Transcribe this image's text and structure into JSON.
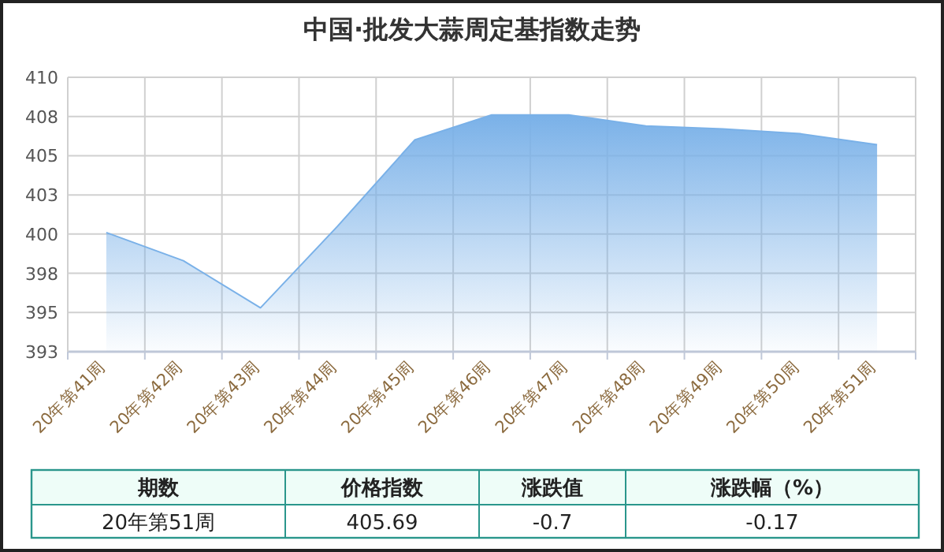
{
  "chart_data": {
    "type": "area",
    "title": "中国·批发大蒜周定基指数走势",
    "categories": [
      "20年第41周",
      "20年第42周",
      "20年第43周",
      "20年第44周",
      "20年第45周",
      "20年第46周",
      "20年第47周",
      "20年第48周",
      "20年第49周",
      "20年第50周",
      "20年第51周"
    ],
    "series": [
      {
        "color": "#7ab1e8",
        "values": [
          400.1,
          398.3,
          395.3,
          400.5,
          406.0,
          407.6,
          407.6,
          406.9,
          406.7,
          406.4,
          405.7
        ]
      }
    ],
    "ylim": [
      392.5,
      410
    ],
    "yticks": [
      {
        "value": 392.5,
        "label": "393"
      },
      395,
      {
        "value": 397.5,
        "label": "398"
      },
      400,
      {
        "value": 402.5,
        "label": "403"
      },
      405,
      {
        "value": 407.5,
        "label": "408"
      },
      410
    ],
    "grid": true,
    "annotations": [
      "期数",
      "价格指数",
      "涨跌值",
      "涨跌幅（%）",
      "20年第51周",
      "405.69",
      "-0.7",
      "-0.17"
    ]
  }
}
